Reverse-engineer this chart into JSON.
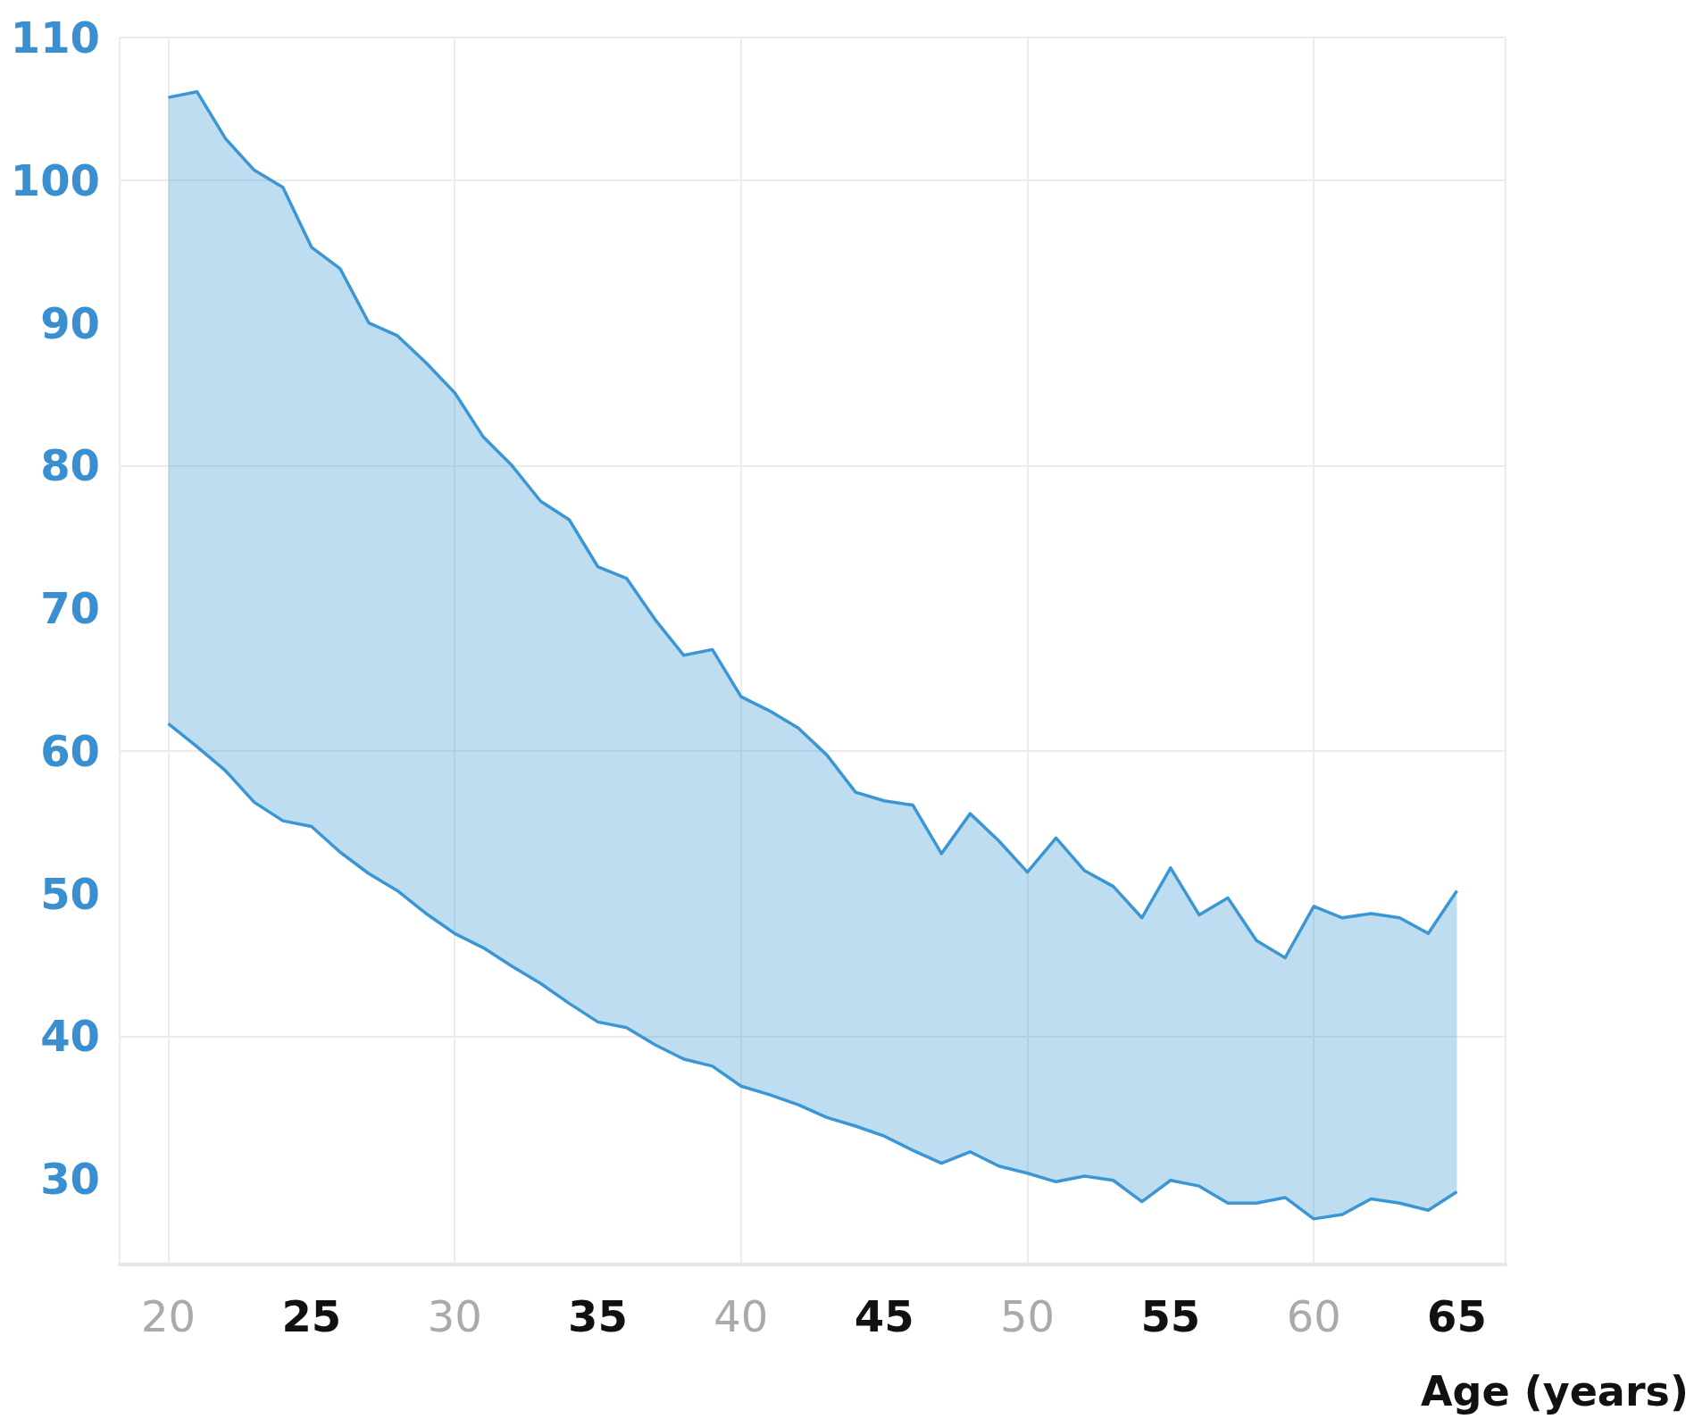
{
  "chart_data": {
    "type": "area",
    "xlabel": "Age (years)",
    "x": [
      20,
      21,
      22,
      23,
      24,
      25,
      26,
      27,
      28,
      29,
      30,
      31,
      32,
      33,
      34,
      35,
      36,
      37,
      38,
      39,
      40,
      41,
      42,
      43,
      44,
      45,
      46,
      47,
      48,
      49,
      50,
      51,
      52,
      53,
      54,
      55,
      56,
      57,
      58,
      59,
      60,
      61,
      62,
      63,
      64,
      65
    ],
    "series": [
      {
        "type": "line",
        "color": "#3a97d4",
        "values": [
          61.9,
          60.3,
          58.6,
          56.4,
          55.1,
          54.7,
          52.9,
          51.4,
          50.2,
          48.6,
          47.2,
          46.2,
          44.9,
          43.7,
          42.3,
          41.0,
          40.6,
          39.4,
          38.4,
          37.9,
          36.5,
          35.9,
          35.2,
          34.3,
          33.7,
          33.0,
          32.0,
          31.1,
          31.9,
          30.9,
          30.4,
          29.8,
          30.2,
          29.9,
          28.4,
          29.9,
          29.5,
          28.3,
          28.3,
          28.7,
          27.2,
          27.5,
          28.6,
          28.3,
          27.8,
          29.1
        ]
      },
      {
        "color": "#3a97d4",
        "values": [
          105.8,
          106.2,
          102.9,
          100.7,
          99.5,
          95.3,
          93.8,
          90.0,
          89.1,
          87.2,
          85.1,
          82.0,
          80.0,
          77.5,
          76.2,
          72.9,
          72.1,
          69.2,
          66.7,
          67.1,
          63.8,
          62.8,
          61.6,
          59.7,
          57.1,
          56.5,
          56.2,
          52.8,
          55.6,
          53.7,
          51.5,
          53.9,
          51.6,
          50.5,
          48.3,
          51.8,
          48.5,
          49.7,
          46.7,
          45.5,
          49.1,
          48.3,
          48.6,
          48.3,
          47.2,
          50.2
        ]
      }
    ],
    "xlim": [
      18.3,
      66.7
    ],
    "xticks": [
      20,
      25,
      30,
      35,
      40,
      45,
      50,
      55,
      60,
      65
    ],
    "ylim": [
      24,
      110
    ],
    "yticks": [
      30,
      40,
      50,
      60,
      70,
      80,
      90,
      100,
      110
    ],
    "grid": true,
    "marker": "none",
    "line_style": "solid"
  }
}
